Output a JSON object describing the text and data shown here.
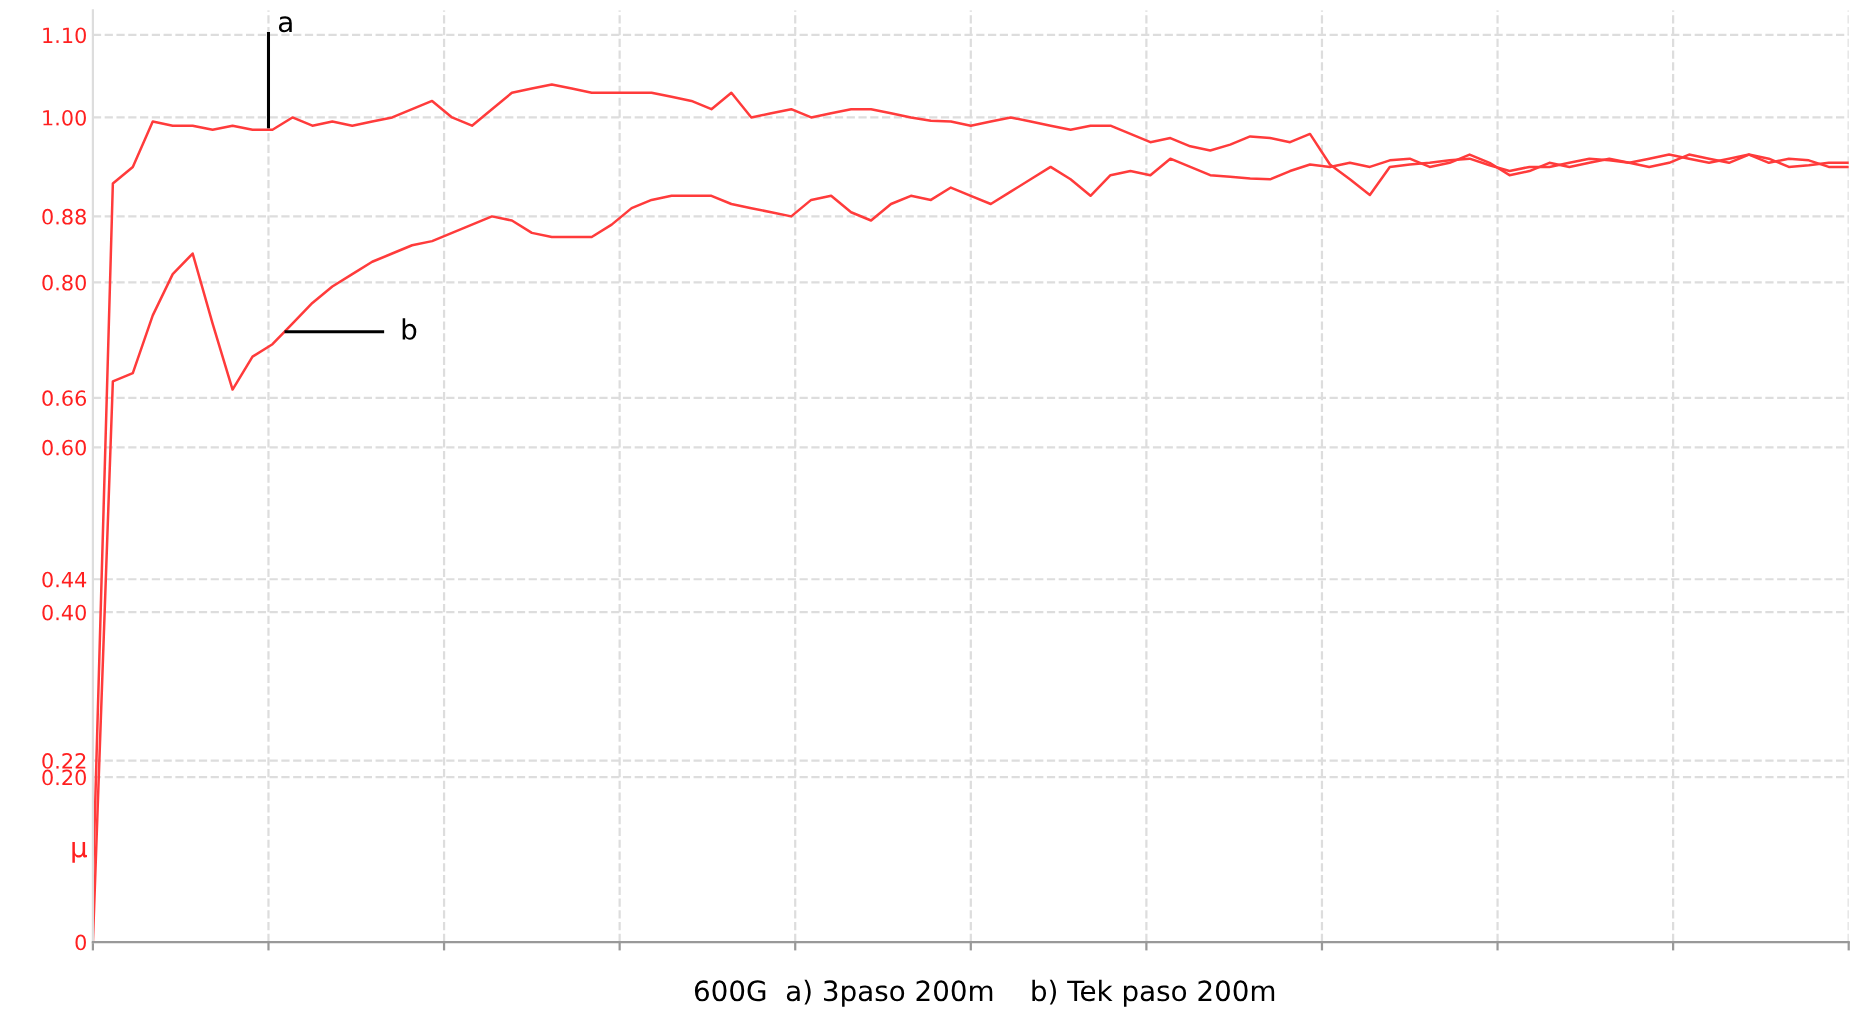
{
  "chart_data": {
    "type": "line",
    "ylabel": "μ",
    "categories": [
      null,
      null,
      null,
      null,
      null,
      null,
      null,
      null,
      null,
      null,
      null,
      null,
      null,
      null,
      null,
      null,
      null,
      null,
      null,
      null,
      null,
      null,
      null,
      null,
      null,
      null,
      null,
      null,
      null,
      null,
      null,
      null,
      null,
      null,
      null,
      null,
      null,
      null,
      null,
      null,
      null,
      null,
      null,
      null,
      null,
      null,
      null,
      null,
      null,
      null,
      null,
      null,
      null,
      null,
      null,
      null,
      null,
      null,
      null,
      null,
      null,
      null,
      null,
      null,
      null,
      null,
      null,
      null,
      null,
      null,
      null,
      null,
      null,
      null,
      null,
      null,
      null,
      null,
      null,
      null,
      null,
      null,
      null,
      null,
      null,
      null,
      null,
      null,
      null
    ],
    "ylim": [
      0,
      1.13
    ],
    "yticks": [
      {
        "value": 0,
        "label": "0"
      },
      {
        "value": 0.2,
        "label": "0.20"
      },
      {
        "value": 0.22,
        "label": "0.22"
      },
      {
        "value": 0.4,
        "label": "0.40"
      },
      {
        "value": 0.44,
        "label": "0.44"
      },
      {
        "value": 0.6,
        "label": "0.60"
      },
      {
        "value": 0.66,
        "label": "0.66"
      },
      {
        "value": 0.8,
        "label": "0.80"
      },
      {
        "value": 0.88,
        "label": "0.88"
      },
      {
        "value": 1.0,
        "label": "1.00"
      },
      {
        "value": 1.1,
        "label": "1.10"
      }
    ],
    "tick_labels": "y",
    "grid": true,
    "line_style": "solid",
    "series": [
      {
        "color": "#ff3b3b",
        "values": [
          0.07,
          0.92,
          0.94,
          0.995,
          0.99,
          0.99,
          0.985,
          0.99,
          0.985,
          0.985,
          1.0,
          0.99,
          0.995,
          0.99,
          0.995,
          1.0,
          1.01,
          1.02,
          1.0,
          0.99,
          1.01,
          1.03,
          1.035,
          1.04,
          1.035,
          1.03,
          1.03,
          1.03,
          1.03,
          1.025,
          1.02,
          1.01,
          1.03,
          1.0,
          1.005,
          1.01,
          1.0,
          1.005,
          1.01,
          1.01,
          1.005,
          1.0,
          0.996,
          0.995,
          0.99,
          0.995,
          1.0,
          0.995,
          0.99,
          0.985,
          0.99,
          0.99,
          0.98,
          0.97,
          0.975,
          0.965,
          0.96,
          0.967,
          0.977,
          0.975,
          0.97,
          0.98,
          0.943,
          0.925,
          0.906,
          0.94,
          0.943,
          0.945,
          0.948,
          0.95,
          0.942,
          0.935,
          0.94,
          0.94,
          0.945,
          0.95,
          0.948,
          0.945,
          0.95,
          0.955,
          0.95,
          0.945,
          0.95,
          0.955,
          0.95,
          0.94,
          0.942,
          0.945,
          0.945
        ]
      },
      {
        "color": "#ff3b3b",
        "values": [
          0.0,
          0.68,
          0.69,
          0.76,
          0.81,
          0.835,
          0.75,
          0.67,
          0.71,
          0.725,
          0.75,
          0.775,
          0.795,
          0.81,
          0.825,
          0.835,
          0.845,
          0.85,
          0.86,
          0.87,
          0.88,
          0.875,
          0.86,
          0.855,
          0.855,
          0.855,
          0.87,
          0.89,
          0.9,
          0.905,
          0.905,
          0.905,
          0.895,
          0.89,
          0.885,
          0.88,
          0.9,
          0.905,
          0.885,
          0.875,
          0.895,
          0.905,
          0.9,
          0.915,
          0.905,
          0.895,
          0.91,
          0.925,
          0.94,
          0.925,
          0.905,
          0.93,
          0.935,
          0.93,
          0.95,
          0.94,
          0.93,
          0.928,
          0.926,
          0.925,
          0.935,
          0.943,
          0.94,
          0.945,
          0.94,
          0.948,
          0.95,
          0.94,
          0.945,
          0.955,
          0.945,
          0.93,
          0.935,
          0.945,
          0.94,
          0.945,
          0.95,
          0.945,
          0.94,
          0.945,
          0.955,
          0.95,
          0.945,
          0.955,
          0.945,
          0.95,
          0.948,
          0.94,
          0.94
        ]
      }
    ],
    "annotations": [
      "a",
      "b",
      "600G  a) 3paso 200m    b) Tek paso 200m"
    ]
  }
}
